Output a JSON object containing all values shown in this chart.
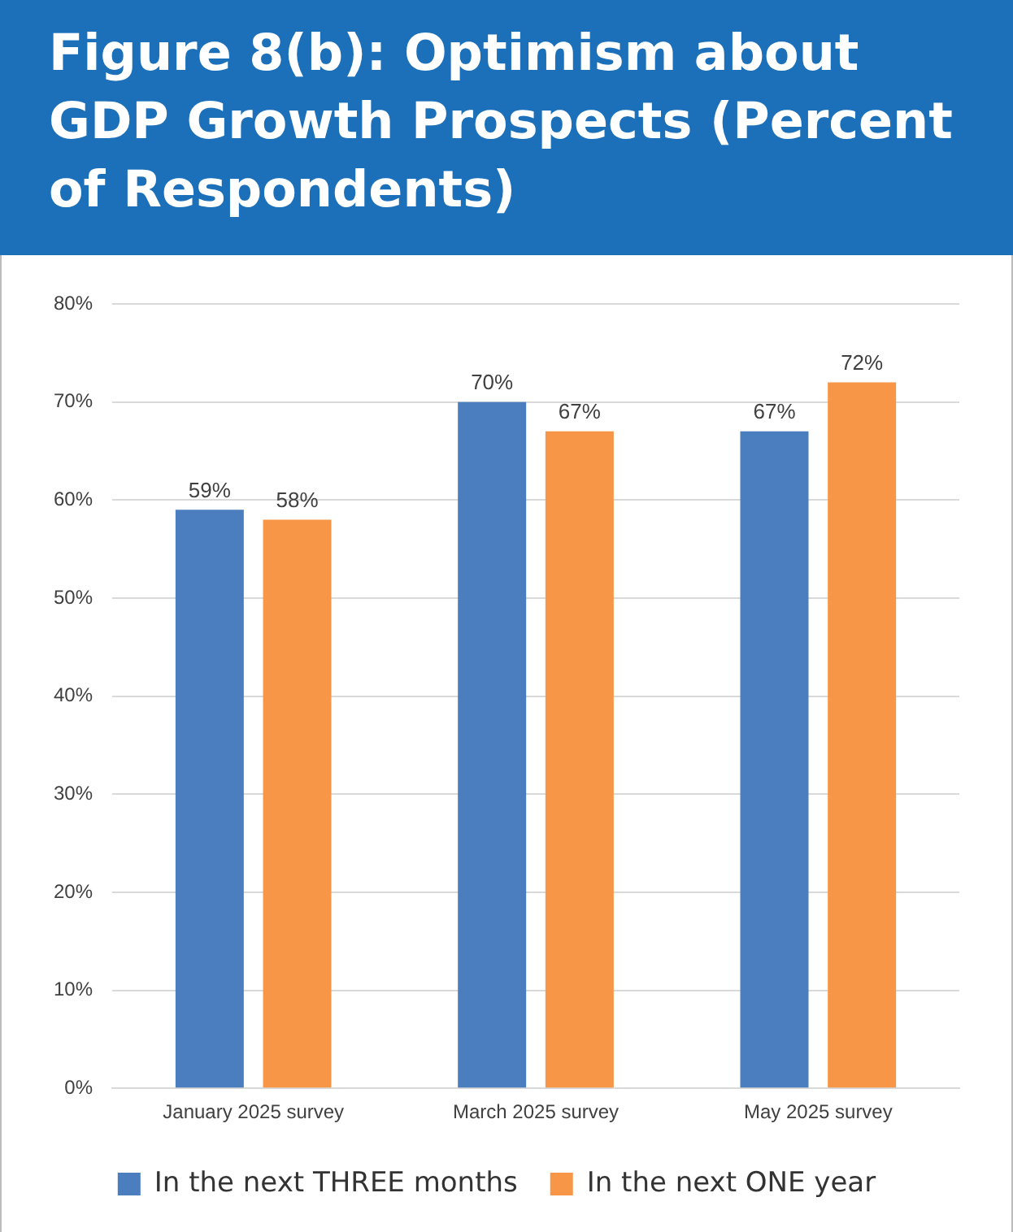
{
  "chart_data": {
    "type": "bar",
    "title": "Figure 8(b): Optimism about GDP Growth Prospects (Percent of Respondents)",
    "categories": [
      "January 2025 survey",
      "March 2025 survey",
      "May 2025 survey"
    ],
    "series": [
      {
        "name": "In the next THREE months",
        "color": "#4a7ebf",
        "values": [
          59,
          70,
          67
        ],
        "value_labels": [
          "59%",
          "70%",
          "67%"
        ]
      },
      {
        "name": "In the next ONE year",
        "color": "#f79646",
        "values": [
          58,
          67,
          72
        ],
        "value_labels": [
          "58%",
          "67%",
          "72%"
        ]
      }
    ],
    "ylim": [
      0,
      80
    ],
    "yticks": [
      {
        "value": 0,
        "label": "0%"
      },
      {
        "value": 10,
        "label": "10%"
      },
      {
        "value": 20,
        "label": "20%"
      },
      {
        "value": 30,
        "label": "30%"
      },
      {
        "value": 40,
        "label": "40%"
      },
      {
        "value": 50,
        "label": "50%"
      },
      {
        "value": 60,
        "label": "60%"
      },
      {
        "value": 70,
        "label": "70%"
      },
      {
        "value": 80,
        "label": "80%"
      }
    ],
    "grid": "y",
    "legend": "bottom"
  }
}
